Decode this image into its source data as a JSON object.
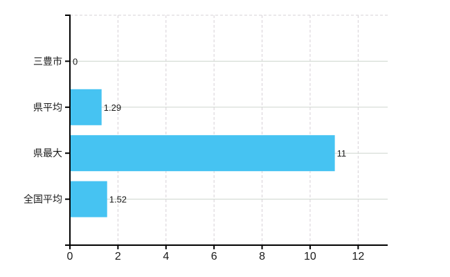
{
  "window": {
    "background": "#ffffff"
  },
  "chart_data": {
    "type": "bar",
    "orientation": "horizontal",
    "title": "",
    "xlabel": "",
    "ylabel": "",
    "categories": [
      "三豊市",
      "県平均",
      "県最大",
      "全国平均"
    ],
    "values": [
      0,
      1.29,
      11,
      1.52
    ],
    "value_labels": [
      "0",
      "1.29",
      "11",
      "1.52"
    ],
    "x_ticks": [
      0,
      2,
      4,
      6,
      8,
      10,
      12
    ],
    "xlim": [
      0,
      13.23
    ],
    "grid": true,
    "legend": false,
    "colors": {
      "bar": "#46c3f2",
      "axis": "#000000",
      "grid_horizontal": "#cdd5cd",
      "grid_vertical": "#d6d0d6",
      "top_border": "#d6d0d6",
      "text": "#1a1a1a"
    }
  }
}
